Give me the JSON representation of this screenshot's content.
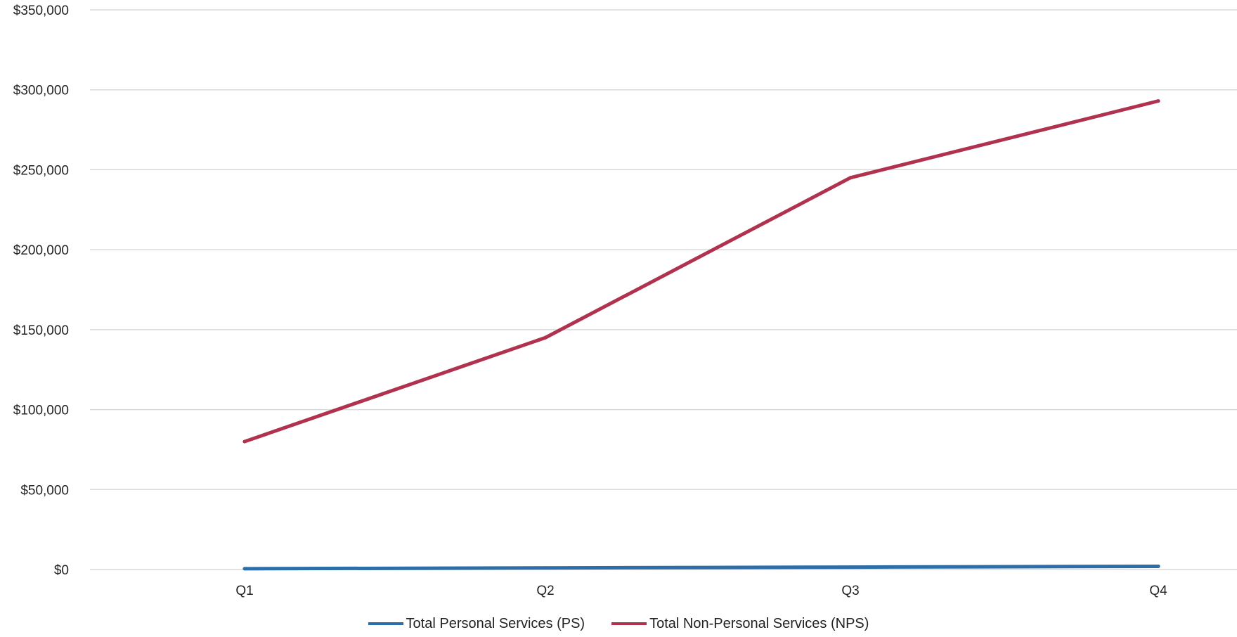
{
  "chart_data": {
    "type": "line",
    "title": "",
    "xlabel": "",
    "ylabel": "",
    "categories": [
      "Q1",
      "Q2",
      "Q3",
      "Q4"
    ],
    "ylim": [
      0,
      350000
    ],
    "yticks": [
      0,
      50000,
      100000,
      150000,
      200000,
      250000,
      300000,
      350000
    ],
    "ytick_labels": [
      "$0",
      "$50,000",
      "$100,000",
      "$150,000",
      "$200,000",
      "$250,000",
      "$300,000",
      "$350,000"
    ],
    "grid": true,
    "legend_position": "bottom",
    "series": [
      {
        "name": "Total Personal Services (PS)",
        "color": "#2e6ea8",
        "values": [
          500,
          1000,
          1500,
          2000
        ]
      },
      {
        "name": "Total Non-Personal Services (NPS)",
        "color": "#b0324f",
        "values": [
          80000,
          145000,
          245000,
          293000
        ]
      }
    ]
  }
}
